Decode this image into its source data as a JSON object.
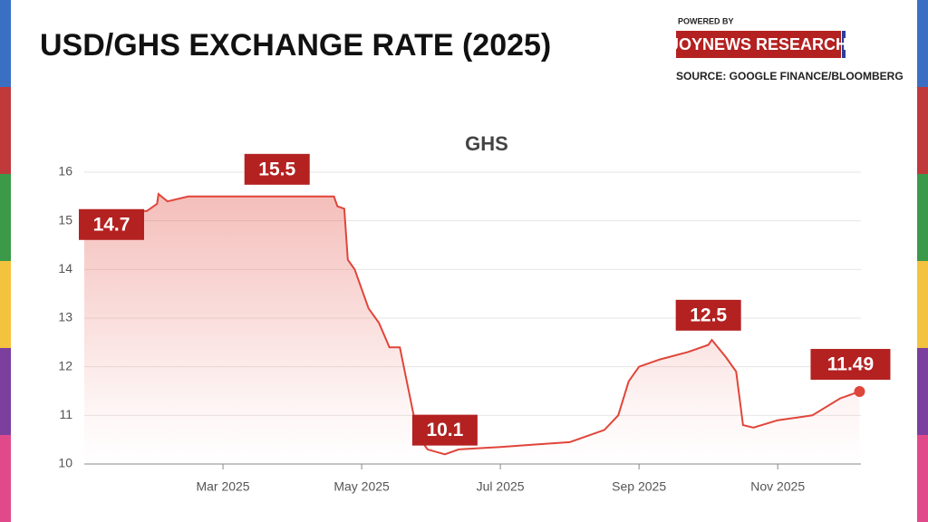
{
  "header": {
    "title": "USD/GHS EXCHANGE RATE (2025)",
    "powered_by": "POWERED BY",
    "brand": "JOYNEWS RESEARCH",
    "source": "SOURCE: GOOGLE FINANCE/BLOOMBERG"
  },
  "chart_data": {
    "type": "line",
    "title": "GHS",
    "color": "#e0453a",
    "fill": true,
    "grid": true,
    "x": [
      0,
      0.3,
      0.5,
      0.7,
      0.9,
      1.05,
      1.07,
      1.2,
      1.5,
      2.0,
      3.0,
      3.6,
      3.65,
      3.75,
      3.8,
      3.9,
      4.1,
      4.25,
      4.4,
      4.55,
      4.75,
      4.85,
      4.95,
      5.2,
      5.4,
      6.0,
      6.5,
      7.0,
      7.5,
      7.7,
      7.85,
      8.0,
      8.3,
      8.7,
      9.0,
      9.05,
      9.25,
      9.4,
      9.5,
      9.65,
      10.0,
      10.5,
      10.9,
      11.18
    ],
    "values": [
      14.7,
      14.75,
      14.9,
      15.2,
      15.2,
      15.35,
      15.55,
      15.4,
      15.5,
      15.5,
      15.5,
      15.5,
      15.3,
      15.25,
      14.2,
      14.0,
      13.2,
      12.9,
      12.4,
      12.4,
      11.0,
      10.5,
      10.3,
      10.2,
      10.3,
      10.35,
      10.4,
      10.45,
      10.7,
      11.0,
      11.7,
      12.0,
      12.15,
      12.3,
      12.45,
      12.55,
      12.2,
      11.9,
      10.8,
      10.75,
      10.9,
      11.0,
      11.35,
      11.49
    ],
    "xlim": [
      0,
      11.2
    ],
    "xticks": [
      {
        "value": 2,
        "label": "Mar 2025"
      },
      {
        "value": 4,
        "label": "May 2025"
      },
      {
        "value": 6,
        "label": "Jul 2025"
      },
      {
        "value": 8,
        "label": "Sep 2025"
      },
      {
        "value": 10,
        "label": "Nov 2025"
      }
    ],
    "ylim": [
      10,
      16
    ],
    "yticks": [
      10,
      11,
      12,
      13,
      14,
      15,
      16
    ],
    "annotations": [
      {
        "text": "14.7",
        "x": 0,
        "y": 14.7
      },
      {
        "text": "15.5",
        "x": 2.78,
        "y": 15.5
      },
      {
        "text": "10.1",
        "x": 5.2,
        "y": 10.1
      },
      {
        "text": "12.5",
        "x": 9.0,
        "y": 12.5
      },
      {
        "text": "11.49",
        "x": 11.18,
        "y": 11.49
      }
    ]
  }
}
